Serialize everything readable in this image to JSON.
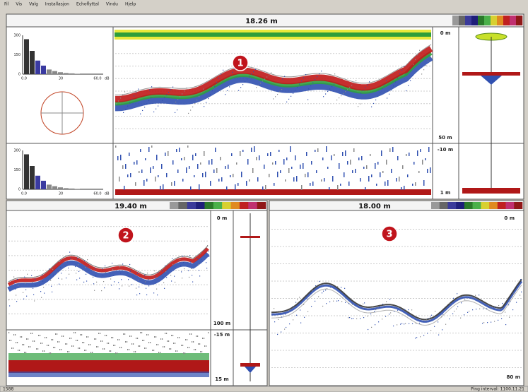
{
  "menu": [
    "Fil",
    "Vis",
    "Valg",
    "Installasjon",
    "Echoflyttal",
    "Vindu",
    "Hjelp"
  ],
  "panels": [
    {
      "depth": "18.26 m",
      "badge": "1",
      "scale_top": "0 m",
      "scale_bottom": "50 m",
      "strip_top": "-10 m",
      "strip_bottom": "1 m"
    },
    {
      "depth": "19.40 m",
      "badge": "2",
      "scale_top": "0 m",
      "scale_bottom": "100 m",
      "strip_top": "-15 m",
      "strip_bottom": "15 m"
    },
    {
      "depth": "18.00 m",
      "badge": "3",
      "scale_top": "0 m",
      "scale_bottom": "80 m"
    }
  ],
  "histogram": {
    "yticks": [
      "300",
      "150",
      "0"
    ],
    "xticks": [
      "0.0",
      "30",
      "60.0"
    ],
    "unit": "dB"
  },
  "status": {
    "left": "1588",
    "right": "Ping interval: 1100.11.21"
  }
}
